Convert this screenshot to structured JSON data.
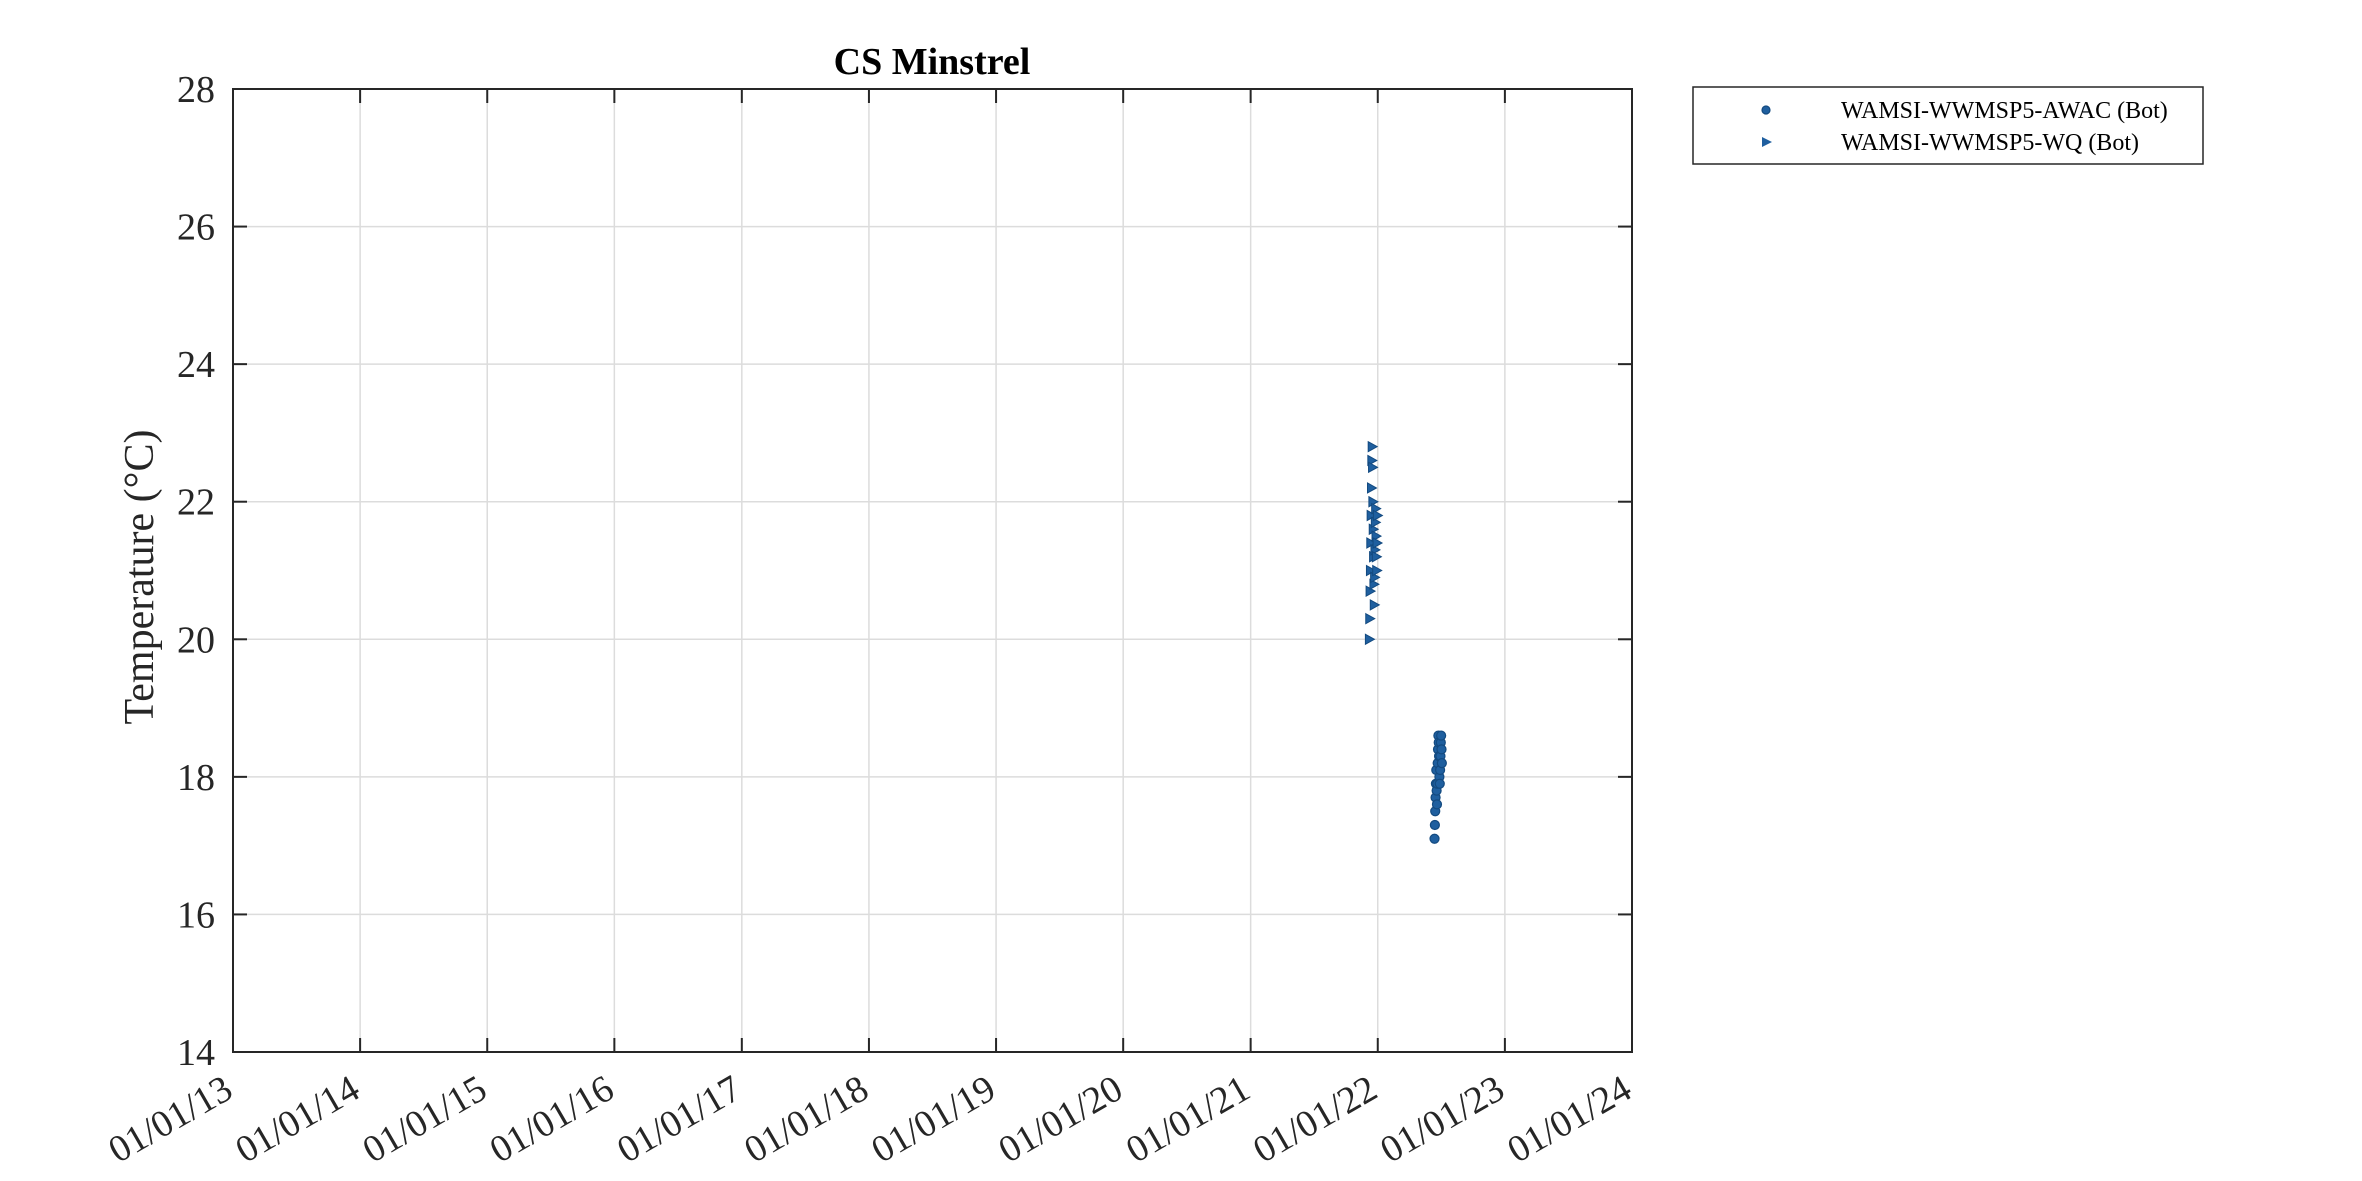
{
  "chart_data": {
    "type": "scatter",
    "title": "CS Minstrel",
    "ylabel": "Temperature (°C)",
    "xlabel": "",
    "ylim": [
      14,
      28
    ],
    "yticks": [
      14,
      16,
      18,
      20,
      22,
      24,
      26,
      28
    ],
    "xlim": [
      "2013-01-01",
      "2024-01-01"
    ],
    "xticks": [
      "2013-01-01",
      "2014-01-01",
      "2015-01-01",
      "2016-01-01",
      "2017-01-01",
      "2018-01-01",
      "2019-01-01",
      "2020-01-01",
      "2021-01-01",
      "2022-01-01",
      "2023-01-01",
      "2024-01-01"
    ],
    "xtick_labels": [
      "01/01/13",
      "01/01/14",
      "01/01/15",
      "01/01/16",
      "01/01/17",
      "01/01/18",
      "01/01/19",
      "01/01/20",
      "01/01/21",
      "01/01/22",
      "01/01/23",
      "01/01/24"
    ],
    "grid": true,
    "legend_position": "outside top-right",
    "series": [
      {
        "name": "WAMSI-WWMSP5-AWAC (Bot)",
        "marker": "circle",
        "color": "#1f5f9f",
        "x": [
          "2022-06-13",
          "2022-06-14",
          "2022-06-15",
          "2022-06-16",
          "2022-06-17",
          "2022-06-18",
          "2022-06-19",
          "2022-06-20",
          "2022-06-21",
          "2022-06-22",
          "2022-06-23",
          "2022-06-24",
          "2022-06-25",
          "2022-06-26",
          "2022-06-27",
          "2022-06-28",
          "2022-06-29",
          "2022-06-30",
          "2022-07-01",
          "2022-07-02",
          "2022-07-03",
          "2022-07-04"
        ],
        "y": [
          17.1,
          17.3,
          17.5,
          17.7,
          17.9,
          18.1,
          17.8,
          17.6,
          17.9,
          18.2,
          18.4,
          18.6,
          18.5,
          18.3,
          18.0,
          17.9,
          18.1,
          18.3,
          18.5,
          18.6,
          18.4,
          18.2
        ]
      },
      {
        "name": "WAMSI-WWMSP5-WQ (Bot)",
        "marker": "triangle-right",
        "color": "#1f5f9f",
        "x": [
          "2021-12-08",
          "2021-12-09",
          "2021-12-10",
          "2021-12-11",
          "2021-12-12",
          "2021-12-13",
          "2021-12-14",
          "2021-12-15",
          "2021-12-16",
          "2021-12-17",
          "2021-12-18",
          "2021-12-19",
          "2021-12-20",
          "2021-12-21",
          "2021-12-22",
          "2021-12-23",
          "2021-12-24",
          "2021-12-25",
          "2021-12-26",
          "2021-12-27",
          "2021-12-28",
          "2021-12-29",
          "2021-12-30",
          "2021-12-31"
        ],
        "y": [
          20.0,
          20.3,
          20.7,
          21.0,
          21.4,
          21.8,
          22.2,
          22.6,
          22.8,
          22.5,
          22.0,
          21.6,
          21.2,
          20.8,
          20.5,
          20.9,
          21.3,
          21.7,
          21.9,
          21.5,
          21.2,
          21.0,
          21.4,
          21.8
        ]
      }
    ]
  }
}
